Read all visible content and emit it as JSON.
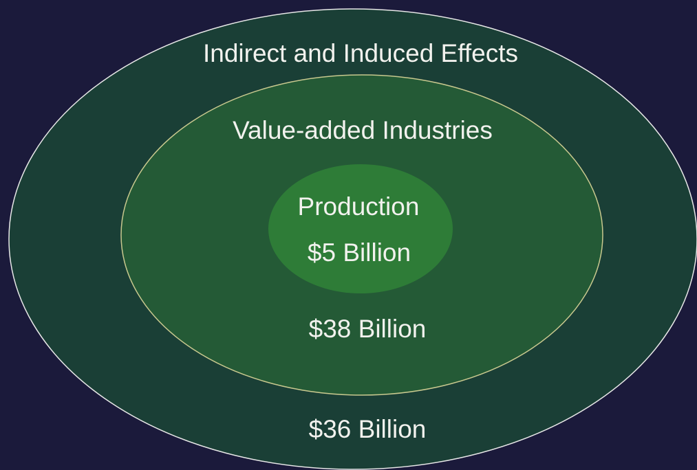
{
  "rings": [
    {
      "label": "Indirect and Induced Effects",
      "value": "$36 Billion"
    },
    {
      "label": "Value-added Industries",
      "value": "$38 Billion"
    },
    {
      "label": "Production",
      "value": "$5 Billion"
    }
  ]
}
